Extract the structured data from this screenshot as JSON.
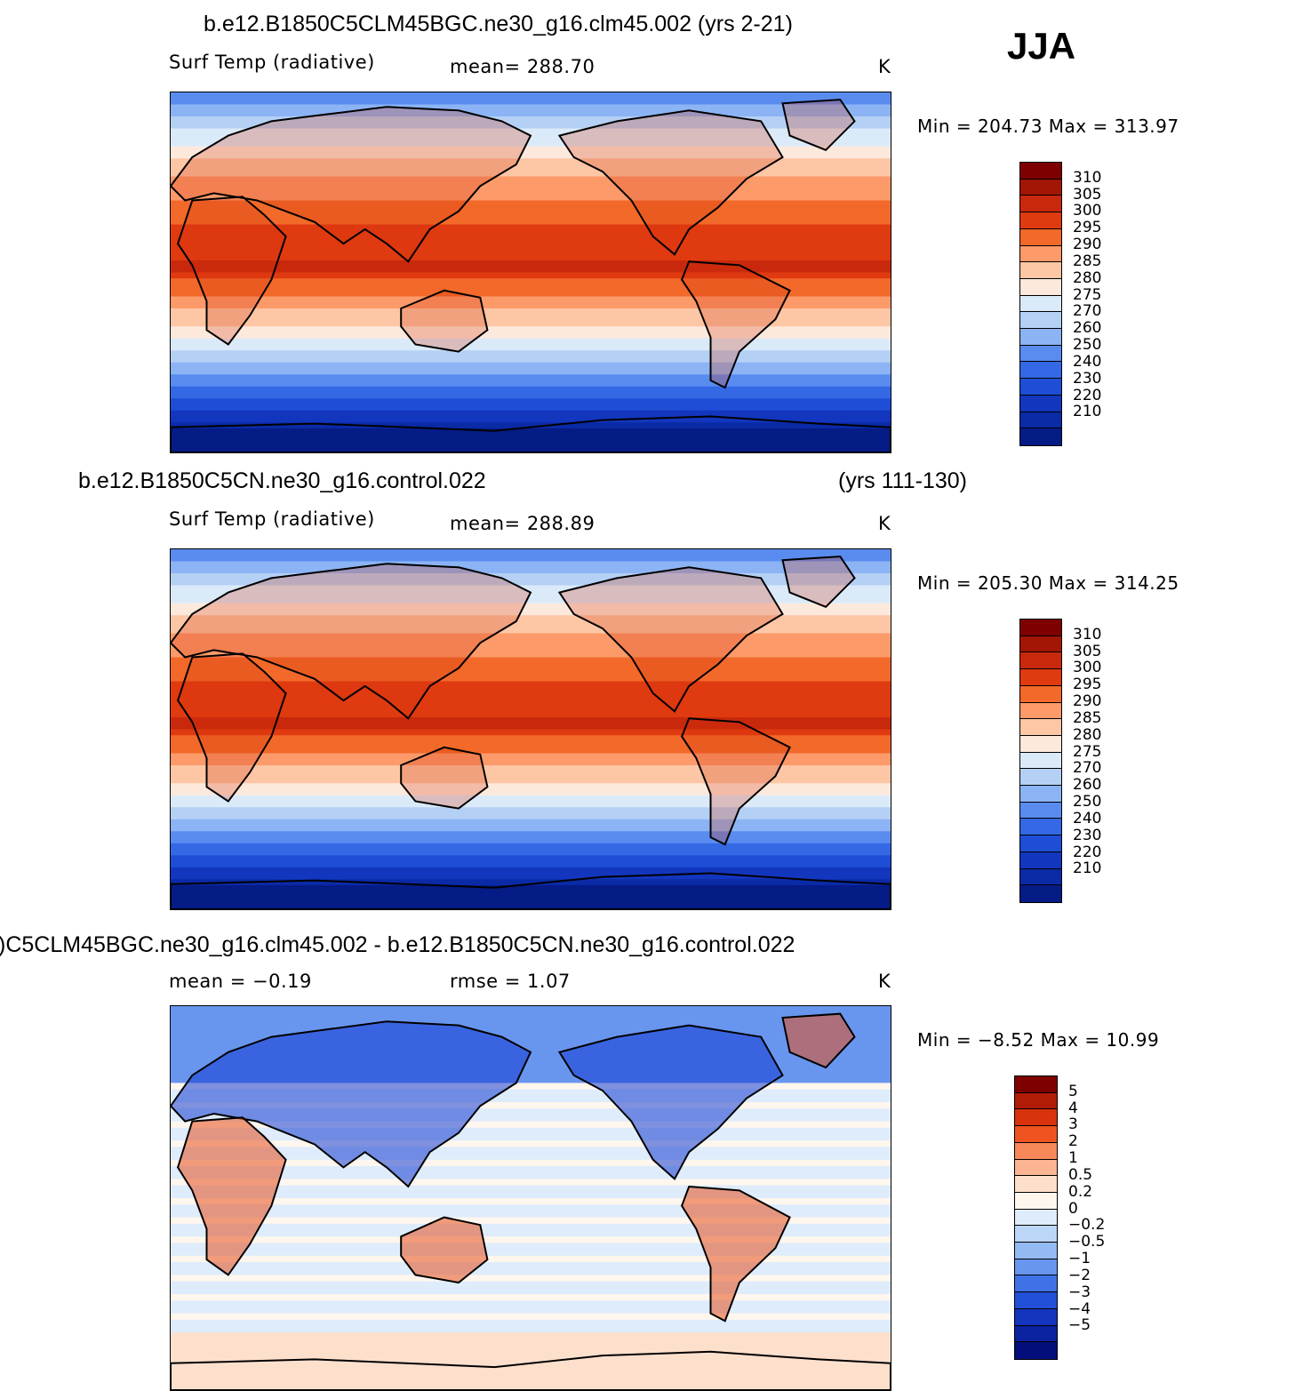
{
  "season": "JJA",
  "panels": [
    {
      "title": "b.e12.B1850C5CLM45BGC.ne30_g16.clm45.002 (yrs 2-21)",
      "title_right": "",
      "left_text": "Surf Temp (radiative)",
      "mid_text": "mean=  288.70",
      "unit": "K",
      "minmax": "Min = 204.73 Max = 313.97",
      "map_kind": "absolute",
      "colorbar": {
        "colors": [
          "#7f0000",
          "#a31505",
          "#c8290c",
          "#e03a10",
          "#f2692a",
          "#fc9a6a",
          "#fdc6a5",
          "#fde9dc",
          "#dbeaf9",
          "#b5d0f5",
          "#8cb4f5",
          "#5a8cf0",
          "#3468e4",
          "#1f4ed6",
          "#1236be",
          "#0a2aa6",
          "#051b85"
        ],
        "labels": [
          "310",
          "305",
          "300",
          "295",
          "290",
          "285",
          "280",
          "275",
          "270",
          "260",
          "250",
          "240",
          "230",
          "220",
          "210"
        ]
      }
    },
    {
      "title": "b.e12.B1850C5CN.ne30_g16.control.022",
      "title_right": "(yrs 111-130)",
      "left_text": "Surf Temp (radiative)",
      "mid_text": "mean=  288.89",
      "unit": "K",
      "minmax": "Min = 205.30 Max = 314.25",
      "map_kind": "absolute",
      "colorbar": {
        "colors": [
          "#7f0000",
          "#a31505",
          "#c8290c",
          "#e03a10",
          "#f2692a",
          "#fc9a6a",
          "#fdc6a5",
          "#fde9dc",
          "#dbeaf9",
          "#b5d0f5",
          "#8cb4f5",
          "#5a8cf0",
          "#3468e4",
          "#1f4ed6",
          "#1236be",
          "#0a2aa6",
          "#051b85"
        ],
        "labels": [
          "310",
          "305",
          "300",
          "295",
          "290",
          "285",
          "280",
          "275",
          "270",
          "260",
          "250",
          "240",
          "230",
          "220",
          "210"
        ]
      }
    },
    {
      "title": ")C5CLM45BGC.ne30_g16.clm45.002 - b.e12.B1850C5CN.ne30_g16.control.022",
      "title_right": "",
      "left_text": "mean =   −0.19",
      "mid_text": "rmse =     1.07",
      "unit": "K",
      "minmax": "Min =   −8.52 Max =   10.99",
      "map_kind": "difference",
      "colorbar": {
        "colors": [
          "#7f0000",
          "#b01c05",
          "#d8330c",
          "#ef5420",
          "#f6885a",
          "#fbb592",
          "#fde0cc",
          "#fff6ee",
          "#deecfb",
          "#bcd6f7",
          "#94baf4",
          "#6896ef",
          "#3f72e6",
          "#2350d8",
          "#1435bd",
          "#0b23a0",
          "#030e7a"
        ],
        "labels": [
          "5",
          "4",
          "3",
          "2",
          "1",
          "0.5",
          "0.2",
          "0",
          "−0.2",
          "−0.5",
          "−1",
          "−2",
          "−3",
          "−4",
          "−5"
        ]
      }
    }
  ]
}
